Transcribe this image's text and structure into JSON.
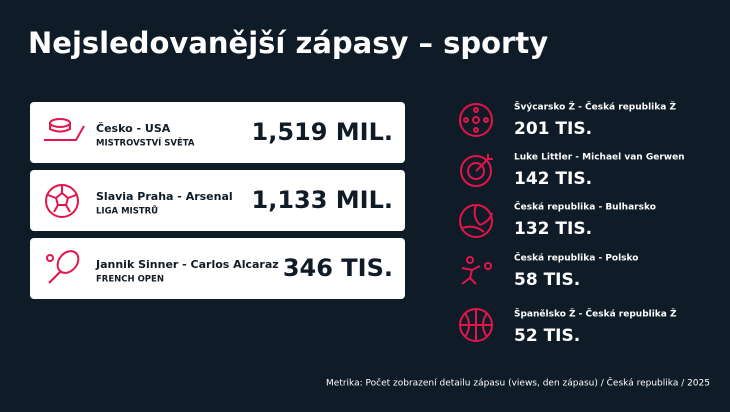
{
  "title": "Nejsledovanější zápasy – sporty",
  "top_matches": [
    {
      "match": "Česko - USA",
      "competition": "MISTROVSTVÍ SVĚTA",
      "views": "1,519 MIL."
    },
    {
      "match": "Slavia Praha - Arsenal",
      "competition": "LIGA MISTRŮ",
      "views": "1,133 MIL."
    },
    {
      "match": "Jannik Sinner - Carlos Alcaraz",
      "competition": "FRENCH OPEN",
      "views": "346 TIS."
    }
  ],
  "other_matches": [
    {
      "match": "Švýcarsko Ž - Česká republika Ž",
      "views": "201 TIS."
    },
    {
      "match": "Luke Littler - Michael van Gerwen",
      "views": "142 TIS."
    },
    {
      "match": "Česká republika - Bulharsko",
      "views": "132 TIS."
    },
    {
      "match": "Česká republika - Polsko",
      "views": "58 TIS."
    },
    {
      "match": "Španělsko Ž - Česká republika Ž",
      "views": "52 TIS."
    }
  ],
  "footer": "Metrika: Počet zobrazení detailu zápasu (views, den zápasu) / Česká republika / 2025"
}
